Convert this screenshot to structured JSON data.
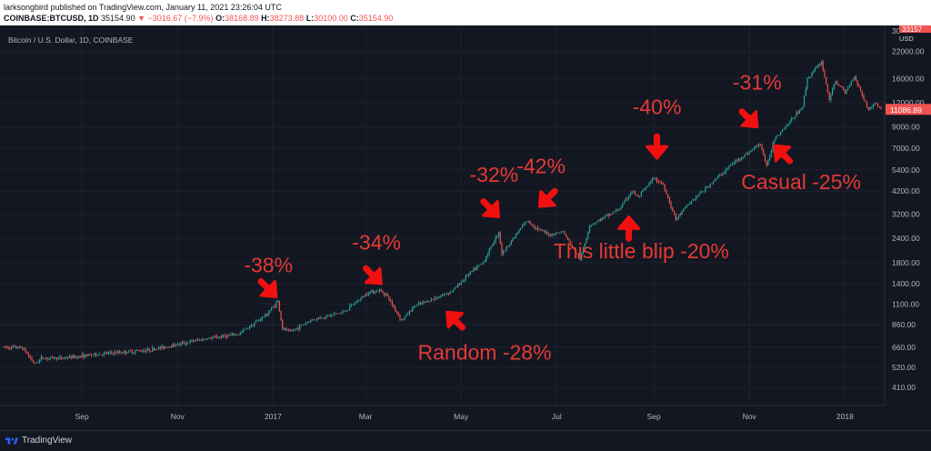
{
  "header": {
    "publisher_line": "larksongbird published on TradingView.com, January 11, 2021 23:26:04 UTC",
    "symbol": "COINBASE:BTCUSD, 1D",
    "last": "35154.90",
    "change": "▼ −3016.67 (−7.9%)",
    "o_label": "O:",
    "o_value": "38168.89",
    "h_label": "H:",
    "h_value": "38273.88",
    "l_label": "L:",
    "l_value": "30100.00",
    "c_label": "C:",
    "c_value": "35154.90"
  },
  "footer": {
    "brand": "TradingView"
  },
  "colors": {
    "up": "#26a69a",
    "down": "#ef5350",
    "annotation": "#e53935",
    "arrow": "#f01010"
  },
  "chart_data": {
    "type": "candlestick",
    "subtitle": "Bitcoin / U.S. Dollar, 1D, COINBASE",
    "y_scale": "log",
    "currency_label": "USD",
    "ylim": [
      330,
      30000
    ],
    "y_ticks": [
      410,
      520,
      660,
      860,
      1100,
      1400,
      1800,
      2400,
      3200,
      4200,
      5400,
      7000,
      9000,
      12000,
      16000,
      22000
    ],
    "y_tick_labels": [
      "410.00",
      "520.00",
      "660.00",
      "860.00",
      "1100.00",
      "1400.00",
      "1800.00",
      "2400.00",
      "3200.00",
      "4200.00",
      "5400.00",
      "7000.00",
      "9000.00",
      "12000.00",
      "16000.00",
      "22000.00"
    ],
    "y_top_partial": "30",
    "x_range": [
      "2016-07-13",
      "2018-01-24"
    ],
    "x_ticks": [
      {
        "date": "2016-09-01",
        "label": "Sep"
      },
      {
        "date": "2016-11-01",
        "label": "Nov"
      },
      {
        "date": "2017-01-01",
        "label": "2017"
      },
      {
        "date": "2017-03-01",
        "label": "Mar"
      },
      {
        "date": "2017-05-01",
        "label": "May"
      },
      {
        "date": "2017-07-01",
        "label": "Jul"
      },
      {
        "date": "2017-09-01",
        "label": "Sep"
      },
      {
        "date": "2017-11-01",
        "label": "Nov"
      },
      {
        "date": "2018-01-01",
        "label": "2018"
      }
    ],
    "price_path": [
      [
        "2016-07-13",
        660
      ],
      [
        "2016-07-25",
        655
      ],
      [
        "2016-08-02",
        540
      ],
      [
        "2016-08-06",
        580
      ],
      [
        "2016-08-20",
        580
      ],
      [
        "2016-09-15",
        610
      ],
      [
        "2016-10-15",
        640
      ],
      [
        "2016-11-15",
        720
      ],
      [
        "2016-12-10",
        770
      ],
      [
        "2016-12-28",
        975
      ],
      [
        "2017-01-04",
        1140
      ],
      [
        "2017-01-07",
        820
      ],
      [
        "2017-01-12",
        790
      ],
      [
        "2017-01-25",
        910
      ],
      [
        "2017-02-15",
        1000
      ],
      [
        "2017-03-03",
        1270
      ],
      [
        "2017-03-10",
        1290
      ],
      [
        "2017-03-14",
        1240
      ],
      [
        "2017-03-24",
        905
      ],
      [
        "2017-04-01",
        1070
      ],
      [
        "2017-04-20",
        1230
      ],
      [
        "2017-04-26",
        1300
      ],
      [
        "2017-05-05",
        1550
      ],
      [
        "2017-05-15",
        1800
      ],
      [
        "2017-05-25",
        2600
      ],
      [
        "2017-05-27",
        2000
      ],
      [
        "2017-06-08",
        2700
      ],
      [
        "2017-06-12",
        2950
      ],
      [
        "2017-06-20",
        2650
      ],
      [
        "2017-06-26",
        2500
      ],
      [
        "2017-07-05",
        2600
      ],
      [
        "2017-07-16",
        1850
      ],
      [
        "2017-07-22",
        2800
      ],
      [
        "2017-08-10",
        3400
      ],
      [
        "2017-08-18",
        4200
      ],
      [
        "2017-08-22",
        3900
      ],
      [
        "2017-09-01",
        4900
      ],
      [
        "2017-09-07",
        4550
      ],
      [
        "2017-09-15",
        3000
      ],
      [
        "2017-09-23",
        3600
      ],
      [
        "2017-10-10",
        4800
      ],
      [
        "2017-10-22",
        5900
      ],
      [
        "2017-11-01",
        6700
      ],
      [
        "2017-11-08",
        7400
      ],
      [
        "2017-11-12",
        5600
      ],
      [
        "2017-11-17",
        7900
      ],
      [
        "2017-11-27",
        9600
      ],
      [
        "2017-12-05",
        11500
      ],
      [
        "2017-12-08",
        16000
      ],
      [
        "2017-12-17",
        19500
      ],
      [
        "2017-12-22",
        12500
      ],
      [
        "2017-12-26",
        15500
      ],
      [
        "2018-01-01",
        13500
      ],
      [
        "2018-01-07",
        16500
      ],
      [
        "2018-01-16",
        11000
      ],
      [
        "2018-01-20",
        12000
      ],
      [
        "2018-01-24",
        11087
      ]
    ],
    "last_price_label": "11086.89",
    "top_price_label": "33157",
    "annotations": [
      {
        "text": "-38%",
        "label_date": "2016-12-29",
        "label_price": 1600,
        "arrow_date": "2017-01-03",
        "arrow_price": 1200,
        "arrow_dir": "down-right"
      },
      {
        "text": "-34%",
        "label_date": "2017-03-08",
        "label_price": 2100,
        "arrow_date": "2017-03-11",
        "arrow_price": 1400,
        "arrow_dir": "down-right"
      },
      {
        "text": "-32%",
        "label_date": "2017-05-22",
        "label_price": 4700,
        "arrow_date": "2017-05-25",
        "arrow_price": 3100,
        "arrow_dir": "down-right"
      },
      {
        "text": "-42%",
        "label_date": "2017-06-21",
        "label_price": 5200,
        "arrow_date": "2017-06-20",
        "arrow_price": 3500,
        "arrow_dir": "down-left"
      },
      {
        "text": "-40%",
        "label_date": "2017-09-03",
        "label_price": 10500,
        "arrow_date": "2017-09-03",
        "arrow_price": 6200,
        "arrow_dir": "down"
      },
      {
        "text": "-31%",
        "label_date": "2017-11-06",
        "label_price": 14000,
        "arrow_date": "2017-11-06",
        "arrow_price": 9000,
        "arrow_dir": "down-right"
      },
      {
        "text": "Random -28%",
        "label_date": "2017-05-16",
        "label_price": 570,
        "arrow_date": "2017-04-22",
        "arrow_price": 1000,
        "arrow_dir": "up-left"
      },
      {
        "text": "This little blip -20%",
        "label_date": "2017-08-24",
        "label_price": 1900,
        "arrow_date": "2017-08-16",
        "arrow_price": 3100,
        "arrow_dir": "up"
      },
      {
        "text": "Casual -25%",
        "label_date": "2017-12-04",
        "label_price": 4300,
        "arrow_date": "2017-11-17",
        "arrow_price": 7200,
        "arrow_dir": "up-left"
      }
    ]
  }
}
